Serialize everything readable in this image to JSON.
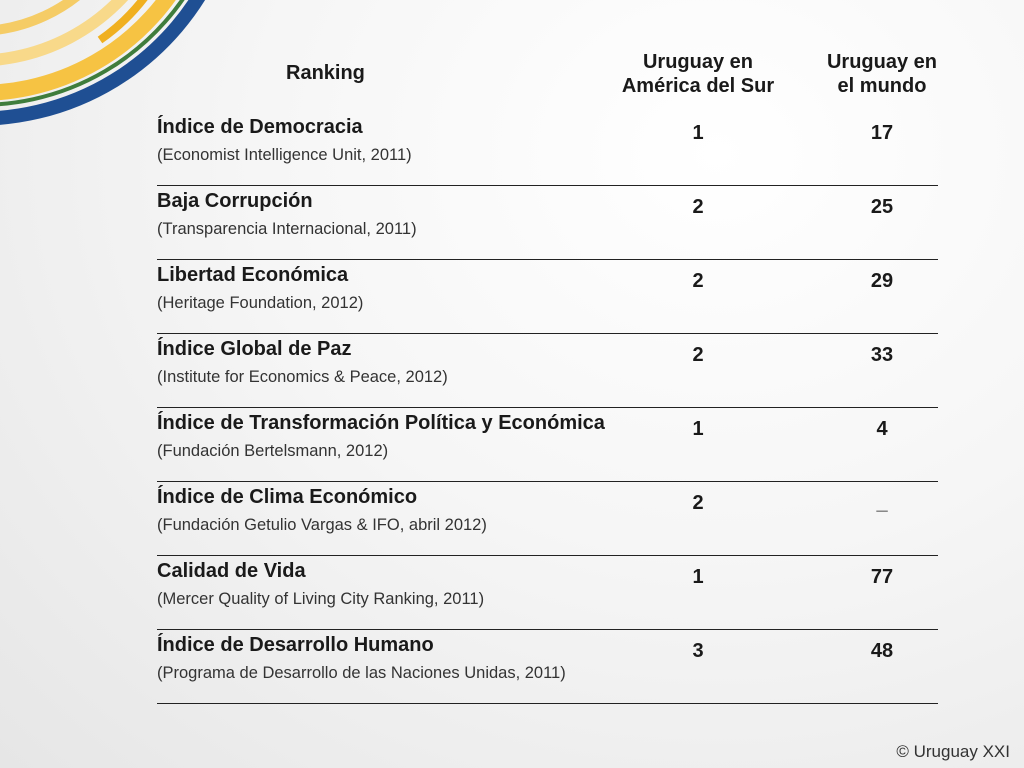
{
  "header": {
    "ranking": "Ranking",
    "col_south_america": "Uruguay en\nAmérica del Sur",
    "col_world": "Uruguay en\nel mundo"
  },
  "rows": [
    {
      "name": "Índice de Democracia",
      "source": "(Economist Intelligence Unit, 2011)",
      "south_america": "1",
      "world": "17"
    },
    {
      "name": "Baja Corrupción",
      "source": "(Transparencia Internacional, 2011)",
      "south_america": "2",
      "world": "25"
    },
    {
      "name": "Libertad Económica",
      "source": "(Heritage Foundation, 2012)",
      "south_america": "2",
      "world": "29"
    },
    {
      "name": "Índice Global de Paz",
      "source": "(Institute for Economics & Peace, 2012)",
      "south_america": "2",
      "world": "33"
    },
    {
      "name": "Índice de Transformación Política y Económica",
      "source": "(Fundación Bertelsmann, 2012)",
      "south_america": "1",
      "world": "4"
    },
    {
      "name": "Índice de Clima Económico",
      "source": "(Fundación Getulio Vargas & IFO, abril 2012)",
      "south_america": "2",
      "world": "_"
    },
    {
      "name": "Calidad de Vida",
      "source": "(Mercer Quality of Living City Ranking, 2011)",
      "south_america": "1",
      "world": "77"
    },
    {
      "name": "Índice de Desarrollo Humano",
      "source": "(Programa de Desarrollo de las Naciones Unidas, 2011)",
      "south_america": "3",
      "world": "48"
    }
  ],
  "footer": {
    "copyright": "© Uruguay XXI"
  },
  "colors": {
    "blue": "#1f4f93",
    "yellow": "#f6c343",
    "green": "#3f7d3c"
  }
}
